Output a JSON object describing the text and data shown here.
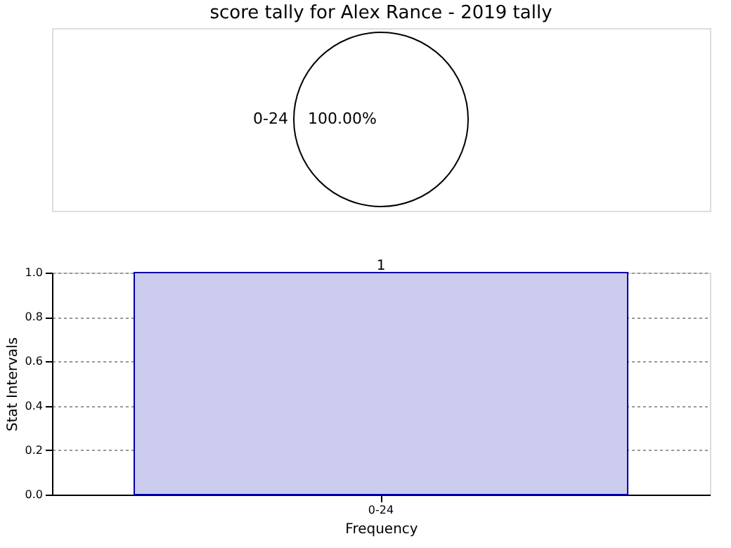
{
  "chart_data": [
    {
      "type": "pie",
      "title": "score tally for Alex Rance - 2019 tally",
      "categories": [
        "0-24"
      ],
      "values": [
        100
      ],
      "colors": [
        "#ffffff"
      ],
      "value_labels": [
        "100.00%"
      ],
      "legend": false
    },
    {
      "type": "bar",
      "categories": [
        "0-24"
      ],
      "values": [
        1
      ],
      "color": "#ccccee",
      "xlabel": "Frequency",
      "ylabel": "Stat Intervals",
      "ylim": [
        0,
        1
      ],
      "yticks": [
        {
          "value": 0,
          "label": "0.0"
        },
        {
          "value": 0.2,
          "label": "0.2"
        },
        {
          "value": 0.4,
          "label": "0.4"
        },
        {
          "value": 0.6,
          "label": "0.6"
        },
        {
          "value": 0.8,
          "label": "0.8"
        },
        {
          "value": 1,
          "label": "1.0"
        }
      ],
      "grid": true,
      "data_labels": true,
      "legend": false
    }
  ]
}
